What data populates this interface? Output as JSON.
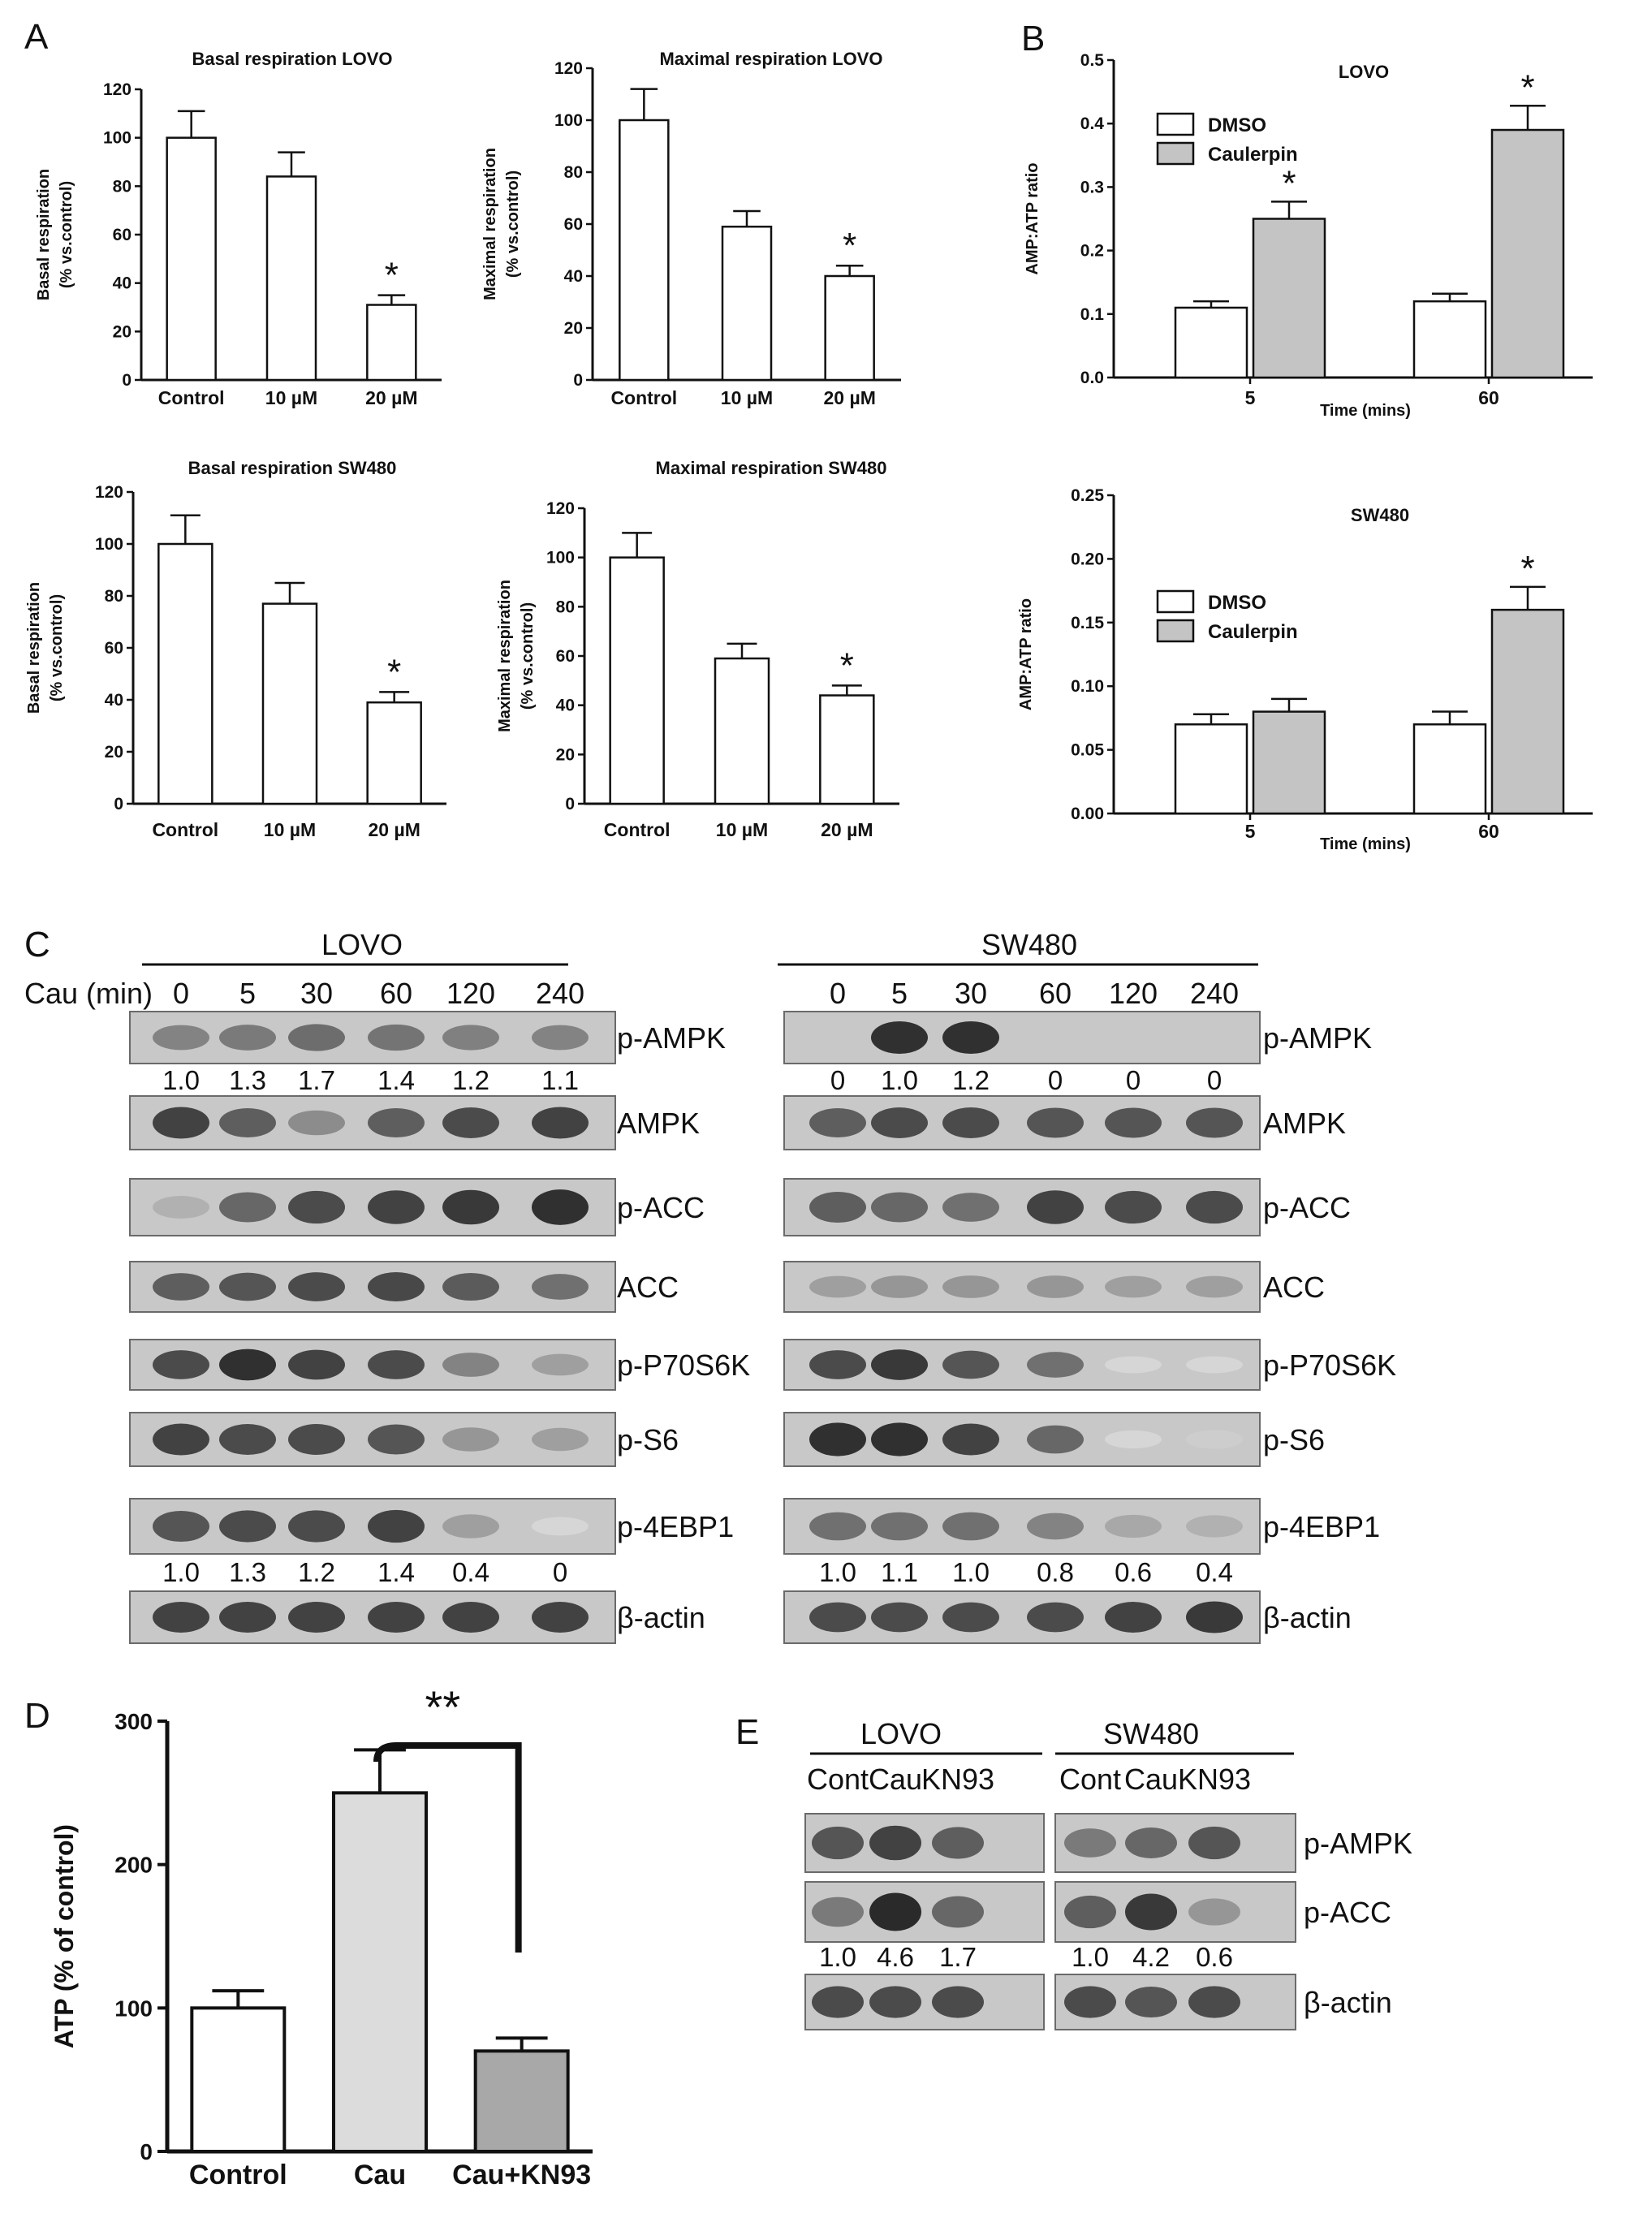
{
  "panel_labels": {
    "A": "A",
    "B": "B",
    "C": "C",
    "D": "D",
    "E": "E"
  },
  "chart_data": [
    {
      "id": "basal-lovo",
      "type": "bar",
      "title": "Basal respiration LOVO",
      "ylabel": [
        "Basal respiration",
        "(% vs.control)"
      ],
      "categories": [
        "Control",
        "10 µM",
        "20 µM"
      ],
      "values": [
        100,
        84,
        31
      ],
      "errors": [
        11,
        10,
        4
      ],
      "significance": [
        "",
        "",
        "*"
      ],
      "ylim": [
        0,
        120
      ],
      "yticks": [
        "0",
        "20",
        "40",
        "60",
        "80",
        "100",
        "120"
      ],
      "bar_colors": [
        "#ffffff",
        "#ffffff",
        "#ffffff"
      ]
    },
    {
      "id": "maximal-lovo",
      "type": "bar",
      "title": "Maximal respiration LOVO",
      "ylabel": [
        "Maximal respiration",
        "(% vs.control)"
      ],
      "categories": [
        "Control",
        "10 µM",
        "20 µM"
      ],
      "values": [
        100,
        59,
        40
      ],
      "errors": [
        12,
        6,
        4
      ],
      "significance": [
        "",
        "",
        "*"
      ],
      "ylim": [
        0,
        120
      ],
      "yticks": [
        "0",
        "20",
        "40",
        "60",
        "80",
        "100",
        "120"
      ],
      "bar_colors": [
        "#ffffff",
        "#ffffff",
        "#ffffff"
      ]
    },
    {
      "id": "basal-sw480",
      "type": "bar",
      "title": "Basal respiration SW480",
      "ylabel": [
        "Basal respiration",
        "(% vs.control)"
      ],
      "categories": [
        "Control",
        "10 µM",
        "20 µM"
      ],
      "values": [
        100,
        77,
        39
      ],
      "errors": [
        11,
        8,
        4
      ],
      "significance": [
        "",
        "",
        "*"
      ],
      "ylim": [
        0,
        120
      ],
      "yticks": [
        "0",
        "20",
        "40",
        "60",
        "80",
        "100",
        "120"
      ],
      "bar_colors": [
        "#ffffff",
        "#ffffff",
        "#ffffff"
      ]
    },
    {
      "id": "maximal-sw480",
      "type": "bar",
      "title": "Maximal respiration SW480",
      "ylabel": [
        "Maximal respiration",
        "(% vs.control)"
      ],
      "categories": [
        "Control",
        "10 µM",
        "20 µM"
      ],
      "values": [
        100,
        59,
        44
      ],
      "errors": [
        10,
        6,
        4
      ],
      "significance": [
        "",
        "",
        "*"
      ],
      "ylim": [
        0,
        120
      ],
      "yticks": [
        "0",
        "20",
        "40",
        "60",
        "80",
        "100",
        "120"
      ],
      "bar_colors": [
        "#ffffff",
        "#ffffff",
        "#ffffff"
      ]
    },
    {
      "id": "ampatp-lovo",
      "type": "bar",
      "title": "LOVO",
      "ylabel": [
        "AMP:ATP ratio"
      ],
      "xlabel": "Time (mins)",
      "categories": [
        "5",
        "60"
      ],
      "series": [
        {
          "name": "DMSO",
          "color": "#ffffff",
          "values": [
            0.11,
            0.12
          ],
          "errors": [
            0.01,
            0.012
          ],
          "significance": [
            "",
            ""
          ]
        },
        {
          "name": "Caulerpin",
          "color": "#c4c4c4",
          "values": [
            0.25,
            0.39
          ],
          "errors": [
            0.027,
            0.038
          ],
          "significance": [
            "*",
            "*"
          ]
        }
      ],
      "ylim": [
        0,
        0.5
      ],
      "yticks": [
        "0.0",
        "0.1",
        "0.2",
        "0.3",
        "0.4",
        "0.5"
      ]
    },
    {
      "id": "ampatp-sw480",
      "type": "bar",
      "title": "SW480",
      "ylabel": [
        "AMP:ATP ratio"
      ],
      "xlabel": "Time (mins)",
      "categories": [
        "5",
        "60"
      ],
      "series": [
        {
          "name": "DMSO",
          "color": "#ffffff",
          "values": [
            0.07,
            0.07
          ],
          "errors": [
            0.008,
            0.01
          ],
          "significance": [
            "",
            ""
          ]
        },
        {
          "name": "Caulerpin",
          "color": "#c4c4c4",
          "values": [
            0.08,
            0.16
          ],
          "errors": [
            0.01,
            0.018
          ],
          "significance": [
            "",
            "*"
          ]
        }
      ],
      "ylim": [
        0,
        0.25
      ],
      "yticks": [
        "0.00",
        "0.05",
        "0.10",
        "0.15",
        "0.20",
        "0.25"
      ]
    },
    {
      "id": "atp-d",
      "type": "bar",
      "title": "",
      "ylabel": [
        "ATP (% of control)"
      ],
      "categories": [
        "Control",
        "Cau",
        "Cau+KN93"
      ],
      "values": [
        100,
        250,
        70
      ],
      "errors": [
        12,
        30,
        9
      ],
      "significance_bracket": {
        "from": 1,
        "to": 2,
        "label": "**"
      },
      "ylim": [
        0,
        300
      ],
      "yticks": [
        "0",
        "100",
        "200",
        "300"
      ],
      "bar_colors": [
        "#ffffff",
        "#dcdcdc",
        "#a8a8a8"
      ]
    }
  ],
  "western_c": {
    "lovo": {
      "header": "LOVO",
      "treatment_label": "Cau (min)",
      "times": [
        "0",
        "5",
        "30",
        "60",
        "120",
        "240"
      ],
      "blots": [
        {
          "label": "p-AMPK",
          "intensity": [
            0.5,
            0.55,
            0.62,
            0.58,
            0.52,
            0.5
          ]
        },
        {
          "label": "AMPK",
          "intensity": [
            0.85,
            0.7,
            0.45,
            0.7,
            0.8,
            0.85
          ]
        },
        {
          "label": "p-ACC",
          "intensity": [
            0.25,
            0.65,
            0.8,
            0.85,
            0.9,
            0.95
          ]
        },
        {
          "label": "ACC",
          "intensity": [
            0.7,
            0.75,
            0.8,
            0.82,
            0.72,
            0.6
          ]
        },
        {
          "label": "p-P70S6K",
          "intensity": [
            0.8,
            0.95,
            0.85,
            0.8,
            0.5,
            0.35
          ]
        },
        {
          "label": "p-S6",
          "intensity": [
            0.85,
            0.8,
            0.8,
            0.75,
            0.4,
            0.35
          ]
        },
        {
          "label": "p-4EBP1",
          "intensity": [
            0.75,
            0.8,
            0.8,
            0.85,
            0.35,
            0.05
          ]
        },
        {
          "label": "β-actin",
          "intensity": [
            0.85,
            0.85,
            0.85,
            0.85,
            0.85,
            0.85
          ]
        }
      ],
      "quant_pampk": [
        "1.0",
        "1.3",
        "1.7",
        "1.4",
        "1.2",
        "1.1"
      ],
      "quant_4ebp1": [
        "1.0",
        "1.3",
        "1.2",
        "1.4",
        "0.4",
        "0"
      ]
    },
    "sw480": {
      "header": "SW480",
      "times": [
        "0",
        "5",
        "30",
        "60",
        "120",
        "240"
      ],
      "blots": [
        {
          "label": "p-AMPK",
          "intensity": [
            0.0,
            0.95,
            0.95,
            0.0,
            0.0,
            0.0
          ]
        },
        {
          "label": "AMPK",
          "intensity": [
            0.7,
            0.8,
            0.8,
            0.75,
            0.75,
            0.75
          ]
        },
        {
          "label": "p-ACC",
          "intensity": [
            0.7,
            0.65,
            0.6,
            0.85,
            0.8,
            0.8
          ]
        },
        {
          "label": "ACC",
          "intensity": [
            0.35,
            0.4,
            0.4,
            0.4,
            0.35,
            0.35
          ]
        },
        {
          "label": "p-P70S6K",
          "intensity": [
            0.8,
            0.9,
            0.75,
            0.6,
            0.05,
            0.05
          ]
        },
        {
          "label": "p-S6",
          "intensity": [
            0.95,
            0.95,
            0.85,
            0.65,
            0.05,
            0.1
          ]
        },
        {
          "label": "p-4EBP1",
          "intensity": [
            0.6,
            0.6,
            0.6,
            0.5,
            0.3,
            0.25
          ]
        },
        {
          "label": "β-actin",
          "intensity": [
            0.8,
            0.8,
            0.8,
            0.8,
            0.85,
            0.9
          ]
        }
      ],
      "quant_pampk": [
        "0",
        "1.0",
        "1.2",
        "0",
        "0",
        "0"
      ],
      "quant_4ebp1": [
        "1.0",
        "1.1",
        "1.0",
        "0.8",
        "0.6",
        "0.4"
      ]
    }
  },
  "western_e": {
    "groups": [
      {
        "header": "LOVO",
        "lanes": [
          "Cont",
          "Cau",
          "KN93"
        ]
      },
      {
        "header": "SW480",
        "lanes": [
          "Cont",
          "Cau",
          "KN93"
        ]
      }
    ],
    "blots": [
      {
        "label": "p-AMPK",
        "intensity": [
          0.75,
          0.85,
          0.7,
          0.55,
          0.65,
          0.75
        ]
      },
      {
        "label": "p-ACC",
        "intensity": [
          0.55,
          0.98,
          0.65,
          0.7,
          0.9,
          0.4
        ]
      },
      {
        "label": "β-actin",
        "intensity": [
          0.8,
          0.8,
          0.8,
          0.8,
          0.75,
          0.8
        ]
      }
    ],
    "quant_pacc": [
      "1.0",
      "4.6",
      "1.7",
      "1.0",
      "4.2",
      "0.6"
    ]
  }
}
